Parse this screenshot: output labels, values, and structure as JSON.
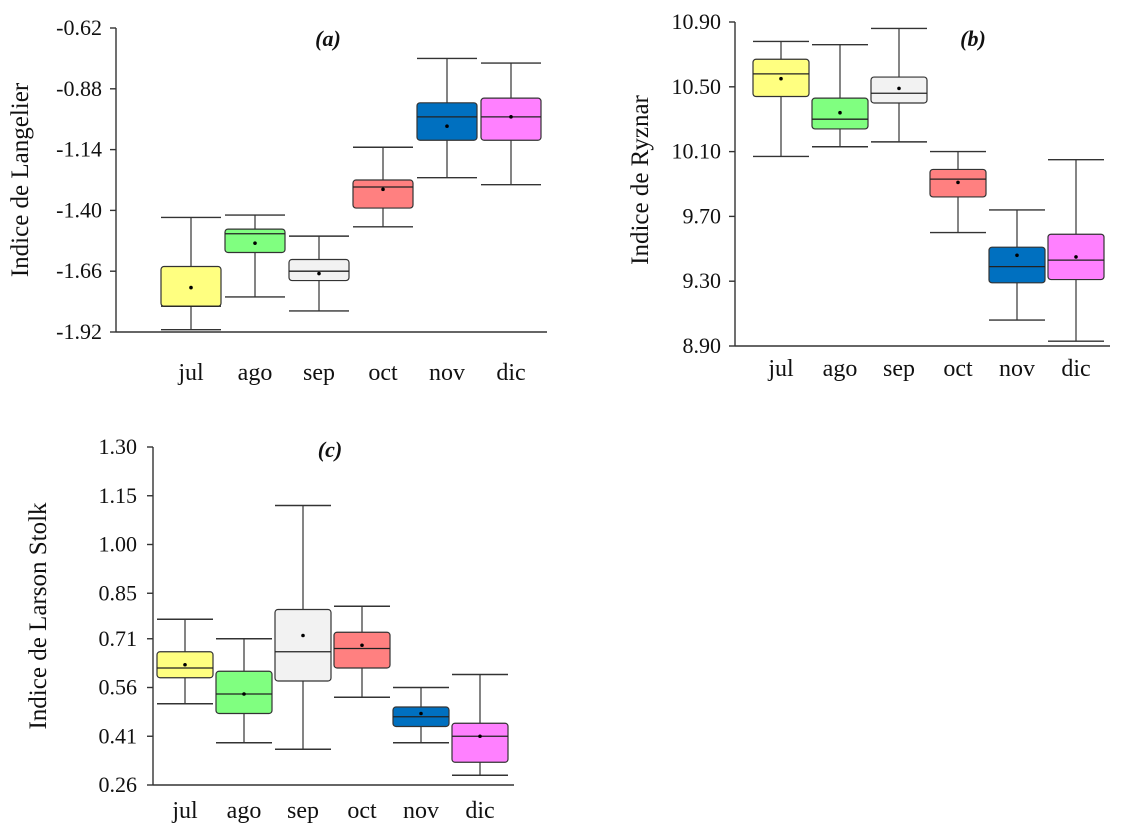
{
  "chart_data": [
    {
      "type": "boxplot",
      "title": "(a)",
      "xlabel": "",
      "ylabel": "Indice de Langelier",
      "categories": [
        "jul",
        "ago",
        "sep",
        "oct",
        "nov",
        "dic"
      ],
      "y_ticks": [
        "-0.62",
        "-0.88",
        "-1.14",
        "-1.40",
        "-1.66",
        "-1.92"
      ],
      "y_tick_values": [
        -0.62,
        -0.88,
        -1.14,
        -1.4,
        -1.66,
        -1.92
      ],
      "ylim": [
        -1.92,
        -0.62
      ],
      "colors": [
        "#ffff80",
        "#80ff80",
        "#f2f2f2",
        "#ff8080",
        "#0070c0",
        "#ff80ff"
      ],
      "boxes": [
        {
          "min": -1.91,
          "q1": -1.81,
          "median": -1.81,
          "q3": -1.64,
          "max": -1.43,
          "mean": -1.73
        },
        {
          "min": -1.77,
          "q1": -1.58,
          "median": -1.5,
          "q3": -1.48,
          "max": -1.42,
          "mean": -1.54
        },
        {
          "min": -1.83,
          "q1": -1.7,
          "median": -1.66,
          "q3": -1.61,
          "max": -1.51,
          "mean": -1.67
        },
        {
          "min": -1.47,
          "q1": -1.39,
          "median": -1.3,
          "q3": -1.27,
          "max": -1.13,
          "mean": -1.31
        },
        {
          "min": -1.26,
          "q1": -1.1,
          "median": -1.0,
          "q3": -0.94,
          "max": -0.75,
          "mean": -1.04
        },
        {
          "min": -1.29,
          "q1": -1.1,
          "median": -1.0,
          "q3": -0.92,
          "max": -0.77,
          "mean": -1.0
        }
      ]
    },
    {
      "type": "boxplot",
      "title": "(b)",
      "xlabel": "",
      "ylabel": "Indice de Ryznar",
      "categories": [
        "jul",
        "ago",
        "sep",
        "oct",
        "nov",
        "dic"
      ],
      "y_ticks": [
        "10.90",
        "10.50",
        "10.10",
        "9.70",
        "9.30",
        "8.90"
      ],
      "y_tick_values": [
        10.9,
        10.5,
        10.1,
        9.7,
        9.3,
        8.9
      ],
      "ylim": [
        8.9,
        10.9
      ],
      "colors": [
        "#ffff80",
        "#80ff80",
        "#f2f2f2",
        "#ff8080",
        "#0070c0",
        "#ff80ff"
      ],
      "boxes": [
        {
          "min": 10.07,
          "q1": 10.44,
          "median": 10.58,
          "q3": 10.67,
          "max": 10.78,
          "mean": 10.55
        },
        {
          "min": 10.13,
          "q1": 10.24,
          "median": 10.3,
          "q3": 10.43,
          "max": 10.76,
          "mean": 10.34
        },
        {
          "min": 10.16,
          "q1": 10.4,
          "median": 10.46,
          "q3": 10.56,
          "max": 10.86,
          "mean": 10.49
        },
        {
          "min": 9.6,
          "q1": 9.82,
          "median": 9.93,
          "q3": 9.99,
          "max": 10.1,
          "mean": 9.91
        },
        {
          "min": 9.06,
          "q1": 9.29,
          "median": 9.39,
          "q3": 9.51,
          "max": 9.74,
          "mean": 9.46
        },
        {
          "min": 8.93,
          "q1": 9.31,
          "median": 9.43,
          "q3": 9.59,
          "max": 10.05,
          "mean": 9.45
        }
      ]
    },
    {
      "type": "boxplot",
      "title": "(c)",
      "xlabel": "",
      "ylabel": "Indice de Larson Stolk",
      "categories": [
        "jul",
        "ago",
        "sep",
        "oct",
        "nov",
        "dic"
      ],
      "y_ticks": [
        "1.30",
        "1.15",
        "1.00",
        "0.85",
        "0.71",
        "0.56",
        "0.41",
        "0.26"
      ],
      "y_tick_values": [
        1.3,
        1.15,
        1.0,
        0.85,
        0.71,
        0.56,
        0.41,
        0.26
      ],
      "ylim": [
        0.26,
        1.3
      ],
      "colors": [
        "#ffff80",
        "#80ff80",
        "#f2f2f2",
        "#ff8080",
        "#0070c0",
        "#ff80ff"
      ],
      "boxes": [
        {
          "min": 0.51,
          "q1": 0.59,
          "median": 0.62,
          "q3": 0.67,
          "max": 0.77,
          "mean": 0.63
        },
        {
          "min": 0.39,
          "q1": 0.48,
          "median": 0.54,
          "q3": 0.61,
          "max": 0.71,
          "mean": 0.54
        },
        {
          "min": 0.37,
          "q1": 0.58,
          "median": 0.67,
          "q3": 0.8,
          "max": 1.12,
          "mean": 0.72
        },
        {
          "min": 0.53,
          "q1": 0.62,
          "median": 0.68,
          "q3": 0.73,
          "max": 0.81,
          "mean": 0.69
        },
        {
          "min": 0.39,
          "q1": 0.44,
          "median": 0.47,
          "q3": 0.5,
          "max": 0.56,
          "mean": 0.48
        },
        {
          "min": 0.29,
          "q1": 0.33,
          "median": 0.41,
          "q3": 0.45,
          "max": 0.6,
          "mean": 0.41
        }
      ]
    }
  ]
}
